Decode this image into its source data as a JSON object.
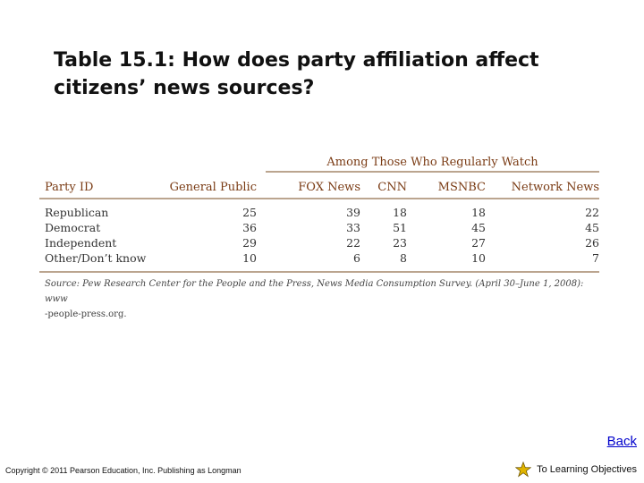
{
  "slide": {
    "title": "Table 15.1: How does party affiliation affect citizens’ news sources?"
  },
  "table": {
    "group_header": "Among Those Who Regularly Watch",
    "columns": [
      "Party ID",
      "General Public",
      "FOX News",
      "CNN",
      "MSNBC",
      "Network News"
    ],
    "rows": [
      [
        "Republican",
        "25",
        "39",
        "18",
        "18",
        "22"
      ],
      [
        "Democrat",
        "36",
        "33",
        "51",
        "45",
        "45"
      ],
      [
        "Independent",
        "29",
        "22",
        "23",
        "27",
        "26"
      ],
      [
        "Other/Don’t know",
        "10",
        "6",
        "8",
        "10",
        "7"
      ]
    ],
    "source_line1": "Source: Pew Research Center for the People and the Press, News Media Consumption Survey. (April 30–June 1, 2008): www",
    "source_line2": "-people-press.org."
  },
  "nav": {
    "back_label": "Back",
    "objectives_label": "To Learning Objectives",
    "objectives_icon": "star-icon",
    "star_color": "#e0b400"
  },
  "footer": {
    "copyright": "Copyright © 2011 Pearson Education, Inc. Publishing as Longman"
  }
}
